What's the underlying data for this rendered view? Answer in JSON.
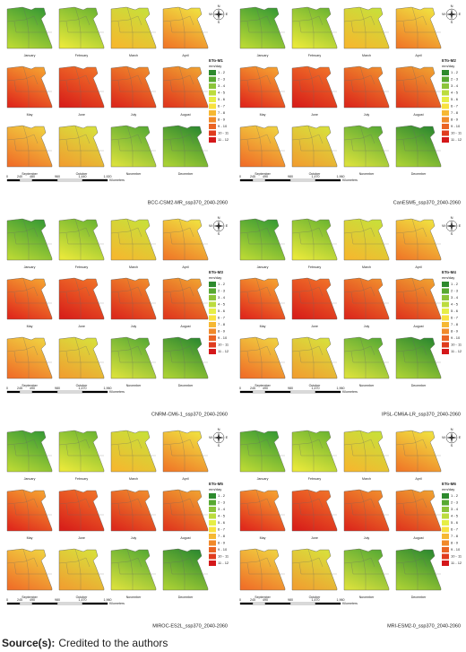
{
  "months": [
    "January",
    "February",
    "March",
    "April",
    "May",
    "June",
    "July",
    "August",
    "September",
    "October",
    "November",
    "December"
  ],
  "compass": {
    "n": "N",
    "e": "E",
    "s": "S",
    "w": "W"
  },
  "legend_unit": "mm/day",
  "legend_classes": [
    {
      "label": "1 - 2",
      "color": "#2d8a2d"
    },
    {
      "label": "2 - 3",
      "color": "#58a932"
    },
    {
      "label": "3 - 4",
      "color": "#8cc43a"
    },
    {
      "label": "4 - 5",
      "color": "#bcdc3e"
    },
    {
      "label": "5 - 6",
      "color": "#e6ee46"
    },
    {
      "label": "6 - 7",
      "color": "#f8e240"
    },
    {
      "label": "7 - 8",
      "color": "#f6b833"
    },
    {
      "label": "8 - 9",
      "color": "#f18a2a"
    },
    {
      "label": "9 - 10",
      "color": "#ea6424"
    },
    {
      "label": "10 - 11",
      "color": "#e03c1e"
    },
    {
      "label": "11 - 12",
      "color": "#d4181a"
    }
  ],
  "scale_unit": "Kilometers",
  "panels": [
    {
      "legend_title": "ETo-M1",
      "scale_labels": [
        "0",
        "240",
        "480",
        "960",
        "1,440",
        "1,920"
      ],
      "caption": "BCC-CSM2-MR_ssp370_2040-2060"
    },
    {
      "legend_title": "ETo-M2",
      "scale_labels": [
        "0",
        "245",
        "490",
        "980",
        "1,470",
        "1,960"
      ],
      "caption": "CanESM5_ssp370_2040-2060"
    },
    {
      "legend_title": "ETo-M3",
      "scale_labels": [
        "0",
        "245",
        "490",
        "980",
        "1,470",
        "1,960"
      ],
      "caption": "CNRM-CM6-1_ssp370_2040-2060"
    },
    {
      "legend_title": "ETo-M4",
      "scale_labels": [
        "0",
        "245",
        "490",
        "980",
        "1,470",
        "1,960"
      ],
      "caption": "IPSL-CM6A-LR_ssp370_2040-2060"
    },
    {
      "legend_title": "ETo-M5",
      "scale_labels": [
        "0",
        "245",
        "490",
        "980",
        "1,470",
        "1,960"
      ],
      "caption": "MIROC-ES2L_ssp370_2040-2060"
    },
    {
      "legend_title": "ETo-M6",
      "scale_labels": [
        "0",
        "245",
        "490",
        "980",
        "1,470",
        "1,960"
      ],
      "caption": "MRI-ESM2-0_ssp370_2040-2060"
    }
  ],
  "source": {
    "label": "Source(s):",
    "text": "Credited to the authors"
  }
}
